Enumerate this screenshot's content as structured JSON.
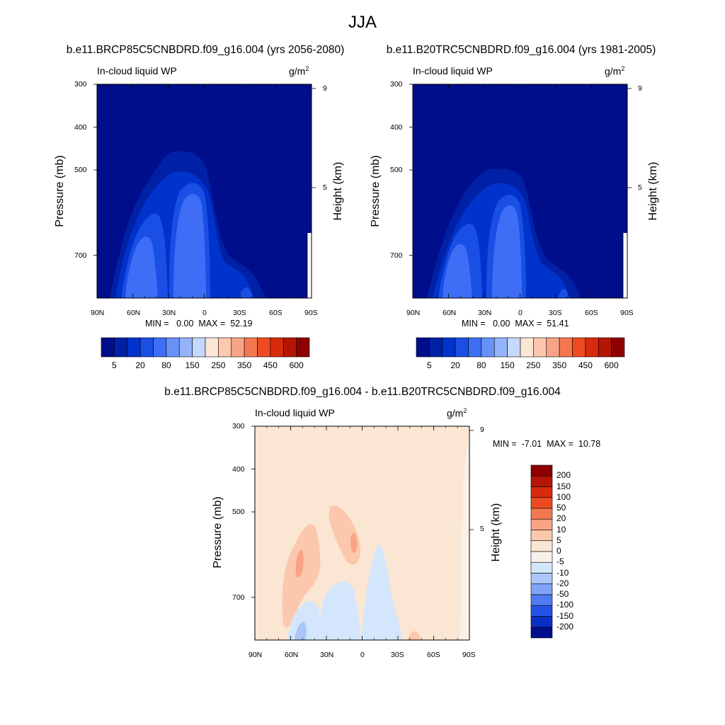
{
  "page": {
    "title": "JJA"
  },
  "panels": [
    {
      "id": "left",
      "subtitle": "b.e11.BRCP85C5CNBDRD.f09_g16.004 (yrs 2056-2080)",
      "variable": "In-cloud liquid WP",
      "units": "g/m",
      "units_sup": "2",
      "ylabel_left": "Pressure (mb)",
      "ylabel_right": "Height (km)",
      "pressure_ticks": [
        "300",
        "400",
        "500",
        "700"
      ],
      "height_ticks": [
        "9",
        "5"
      ],
      "lat_ticks": [
        "90N",
        "60N",
        "30N",
        "0",
        "30S",
        "60S",
        "90S"
      ],
      "min_label": "MIN =",
      "min_value": "0.00",
      "max_label": "MAX =",
      "max_value": "52.19"
    },
    {
      "id": "right",
      "subtitle": "b.e11.B20TRC5CNBDRD.f09_g16.004 (yrs 1981-2005)",
      "variable": "In-cloud liquid WP",
      "units": "g/m",
      "units_sup": "2",
      "ylabel_left": "Pressure (mb)",
      "ylabel_right": "Height (km)",
      "pressure_ticks": [
        "300",
        "400",
        "500",
        "700"
      ],
      "height_ticks": [
        "9",
        "5"
      ],
      "lat_ticks": [
        "90N",
        "60N",
        "30N",
        "0",
        "30S",
        "60S",
        "90S"
      ],
      "min_label": "MIN =",
      "min_value": "0.00",
      "max_label": "MAX =",
      "max_value": "51.41"
    },
    {
      "id": "diff",
      "subtitle": "b.e11.BRCP85C5CNBDRD.f09_g16.004 - b.e11.B20TRC5CNBDRD.f09_g16.004",
      "variable": "In-cloud liquid WP",
      "units": "g/m",
      "units_sup": "2",
      "ylabel_left": "Pressure (mb)",
      "ylabel_right": "Height (km)",
      "pressure_ticks": [
        "300",
        "400",
        "500",
        "700"
      ],
      "height_ticks": [
        "9",
        "5"
      ],
      "lat_ticks": [
        "90N",
        "60N",
        "30N",
        "0",
        "30S",
        "60S",
        "90S"
      ],
      "min_label": "MIN =",
      "min_value": "-7.01",
      "max_label": "MAX =",
      "max_value": "10.78"
    }
  ],
  "colorbar_main": {
    "labels": [
      "5",
      "20",
      "80",
      "150",
      "250",
      "350",
      "450",
      "600"
    ],
    "colors": [
      "#000e8c",
      "#0021a6",
      "#0033cc",
      "#1a4fe6",
      "#3d6ef5",
      "#6691f8",
      "#94b3fa",
      "#c5d8fd",
      "#fbe6d4",
      "#fcc8ad",
      "#f9a386",
      "#f4784f",
      "#ee4b22",
      "#d82a0d",
      "#b51505",
      "#8e0000"
    ]
  },
  "colorbar_diff": {
    "labels": [
      "200",
      "150",
      "100",
      "50",
      "20",
      "10",
      "5",
      "0",
      "-5",
      "-10",
      "-20",
      "-50",
      "-100",
      "-150",
      "-200"
    ],
    "colors": [
      "#8e0000",
      "#b51505",
      "#d82a0d",
      "#ee4b22",
      "#f4784f",
      "#f9a386",
      "#fcc8ad",
      "#fbe6d4",
      "#f7f1ea",
      "#d4e6fb",
      "#aac6fa",
      "#7ea3f7",
      "#4f7bf2",
      "#2553e8",
      "#0a2fc6",
      "#000e8c"
    ]
  },
  "chart_data": [
    {
      "type": "heatmap",
      "title": "b.e11.BRCP85C5CNBDRD.f09_g16.004 (yrs 2056-2080)",
      "xlabel": "",
      "ylabel": "Pressure (mb)",
      "x_categories": [
        "90N",
        "60N",
        "30N",
        "0",
        "30S",
        "60S",
        "90S"
      ],
      "y_range_mb": [
        850,
        300
      ],
      "min": 0.0,
      "max": 52.19,
      "contour_levels": [
        5,
        20,
        80,
        150,
        250,
        350,
        450,
        600
      ]
    },
    {
      "type": "heatmap",
      "title": "b.e11.B20TRC5CNBDRD.f09_g16.004 (yrs 1981-2005)",
      "xlabel": "",
      "ylabel": "Pressure (mb)",
      "x_categories": [
        "90N",
        "60N",
        "30N",
        "0",
        "30S",
        "60S",
        "90S"
      ],
      "y_range_mb": [
        850,
        300
      ],
      "min": 0.0,
      "max": 51.41,
      "contour_levels": [
        5,
        20,
        80,
        150,
        250,
        350,
        450,
        600
      ]
    },
    {
      "type": "heatmap",
      "title": "b.e11.BRCP85C5CNBDRD.f09_g16.004 - b.e11.B20TRC5CNBDRD.f09_g16.004",
      "xlabel": "",
      "ylabel": "Pressure (mb)",
      "x_categories": [
        "90N",
        "60N",
        "30N",
        "0",
        "30S",
        "60S",
        "90S"
      ],
      "y_range_mb": [
        850,
        300
      ],
      "min": -7.01,
      "max": 10.78,
      "contour_levels": [
        -200,
        -150,
        -100,
        -50,
        -20,
        -10,
        -5,
        0,
        5,
        10,
        20,
        50,
        100,
        150,
        200
      ]
    }
  ]
}
